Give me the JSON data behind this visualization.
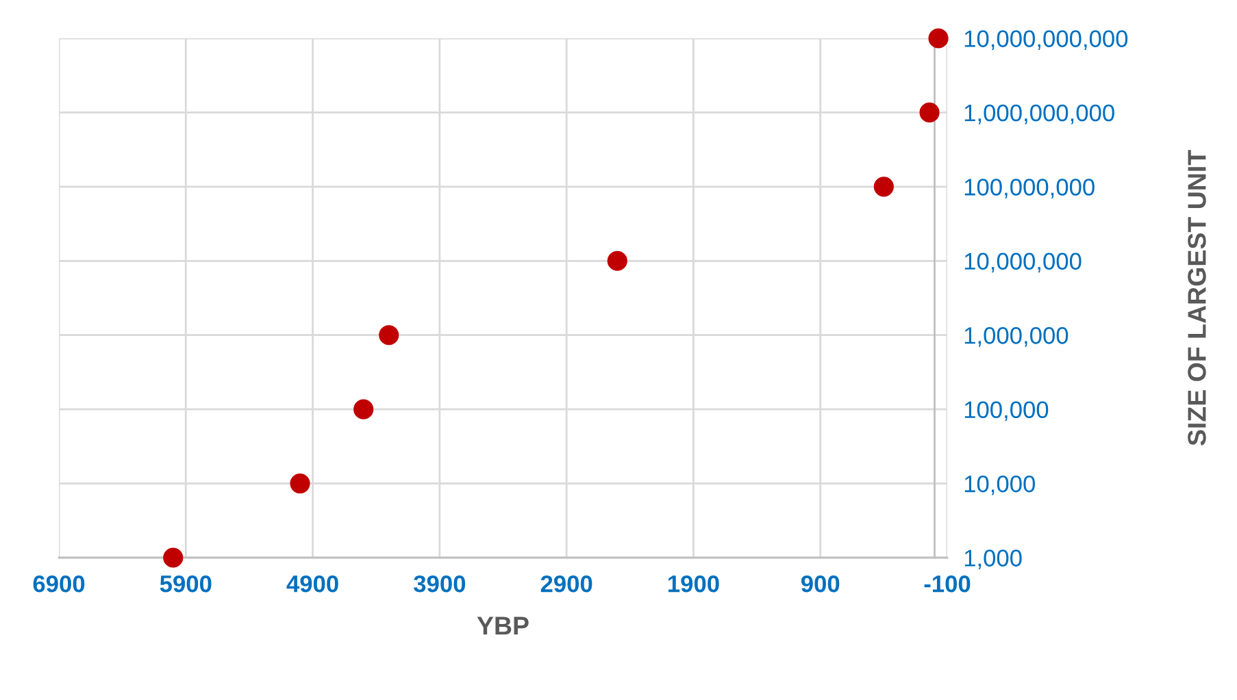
{
  "chart_data": {
    "type": "scatter",
    "xlabel": "YBP",
    "ylabel": "SIZE OF LARGEST UNIT",
    "x": [
      6000,
      5000,
      4500,
      4300,
      2500,
      400,
      40,
      -30
    ],
    "values": [
      1000,
      10000,
      100000,
      1000000,
      10000000,
      100000000,
      1000000000,
      10000000000
    ],
    "color": "#c00000",
    "marker": "circle",
    "log": true,
    "grid": true,
    "xlim": [
      6900,
      -100
    ],
    "xticks": [
      6900,
      5900,
      4900,
      3900,
      2900,
      1900,
      900,
      {
        "value": -100,
        "label": "-100"
      }
    ],
    "ylim": [
      1000,
      10000000000
    ],
    "yticks": [
      {
        "value": 1000,
        "label": "1,000"
      },
      {
        "value": 10000,
        "label": "10,000"
      },
      {
        "value": 100000,
        "label": "100,000"
      },
      {
        "value": 1000000,
        "label": "1,000,000"
      },
      {
        "value": 10000000,
        "label": "10,000,000"
      },
      {
        "value": 100000000,
        "label": "100,000,000"
      },
      {
        "value": 1000000000,
        "label": "1,000,000,000"
      },
      {
        "value": 10000000000,
        "label": "10,000,000,000"
      }
    ]
  }
}
